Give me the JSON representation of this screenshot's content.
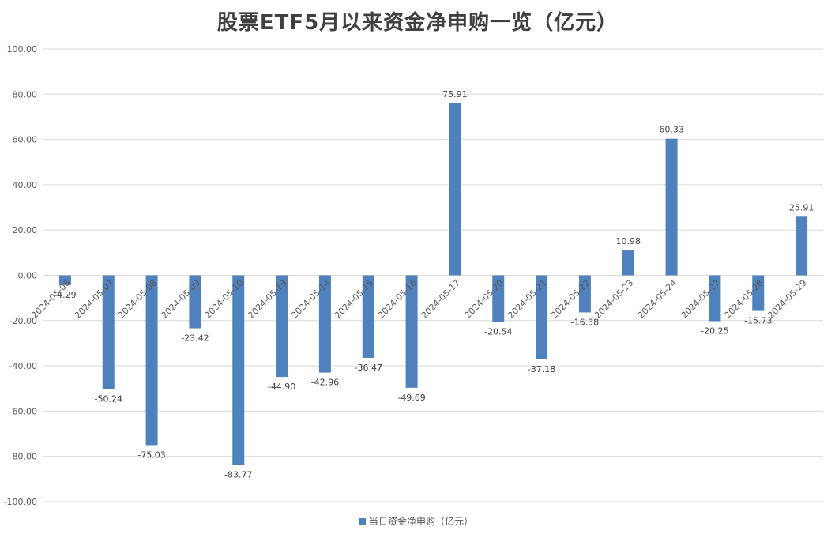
{
  "chart_data": {
    "type": "bar",
    "title": "股票ETF5月以来资金净申购一览（亿元）",
    "categories": [
      "2024-05-06",
      "2024-05-07",
      "2024-05-08",
      "2024-05-09",
      "2024-05-10",
      "2024-05-13",
      "2024-05-14",
      "2024-05-15",
      "2024-05-16",
      "2024-05-17",
      "2024-05-20",
      "2024-05-21",
      "2024-05-22",
      "2024-05-23",
      "2024-05-24",
      "2024-05-27",
      "2024-05-28",
      "2024-05-29"
    ],
    "series": [
      {
        "name": "当日资金净申购（亿元）",
        "color": "#4f81bd",
        "values": [
          -4.29,
          -50.24,
          -75.03,
          -23.42,
          -83.77,
          -44.9,
          -42.96,
          -36.47,
          -49.69,
          75.91,
          -20.54,
          -37.18,
          -16.38,
          10.98,
          60.33,
          -20.25,
          -15.73,
          25.91
        ],
        "labels": [
          "-4.29",
          "-50.24",
          "-75.03",
          "-23.42",
          "-83.77",
          "-44.90",
          "-42.96",
          "-36.47",
          "-49.69",
          "75.91",
          "-20.54",
          "-37.18",
          "-16.38",
          "10.98",
          "60.33",
          "-20.25",
          "-15.73",
          "25.91"
        ]
      }
    ],
    "ylim": [
      -100,
      100
    ],
    "yticks": [
      "100.00",
      "80.00",
      "60.00",
      "40.00",
      "20.00",
      "0.00",
      "-20.00",
      "-40.00",
      "-60.00",
      "-80.00",
      "-100.00"
    ],
    "ytick_values": [
      100,
      80,
      60,
      40,
      20,
      0,
      -20,
      -40,
      -60,
      -80,
      -100
    ],
    "grid": true,
    "legend_position": "bottom"
  }
}
